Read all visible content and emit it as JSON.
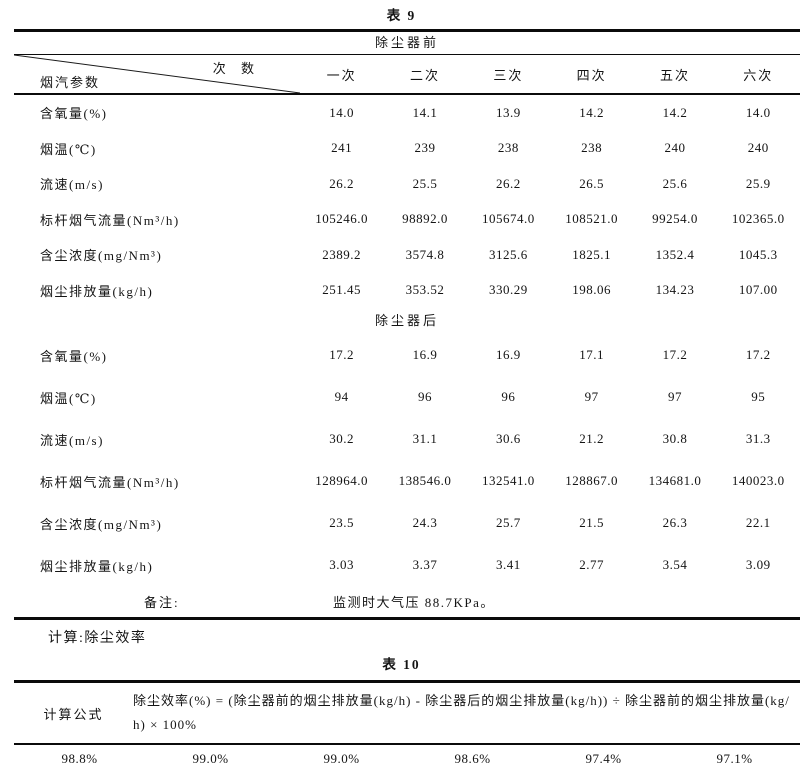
{
  "table9": {
    "title": "表 9",
    "section_before": "除尘器前",
    "section_after": "除尘器后",
    "corner_top": "次 数",
    "corner_bottom": "烟汽参数",
    "columns": [
      "一次",
      "二次",
      "三次",
      "四次",
      "五次",
      "六次"
    ],
    "before_rows": [
      {
        "label": "含氧量(%)",
        "values": [
          "14.0",
          "14.1",
          "13.9",
          "14.2",
          "14.2",
          "14.0"
        ]
      },
      {
        "label": "烟温(℃)",
        "values": [
          "241",
          "239",
          "238",
          "238",
          "240",
          "240"
        ]
      },
      {
        "label": "流速(m/s)",
        "values": [
          "26.2",
          "25.5",
          "26.2",
          "26.5",
          "25.6",
          "25.9"
        ]
      },
      {
        "label": "标杆烟气流量(Nm³/h)",
        "values": [
          "105246.0",
          "98892.0",
          "105674.0",
          "108521.0",
          "99254.0",
          "102365.0"
        ]
      },
      {
        "label": "含尘浓度(mg/Nm³)",
        "values": [
          "2389.2",
          "3574.8",
          "3125.6",
          "1825.1",
          "1352.4",
          "1045.3"
        ]
      },
      {
        "label": "烟尘排放量(kg/h)",
        "values": [
          "251.45",
          "353.52",
          "330.29",
          "198.06",
          "134.23",
          "107.00"
        ]
      }
    ],
    "after_rows": [
      {
        "label": "含氧量(%)",
        "values": [
          "17.2",
          "16.9",
          "16.9",
          "17.1",
          "17.2",
          "17.2"
        ]
      },
      {
        "label": "烟温(℃)",
        "values": [
          "94",
          "96",
          "96",
          "97",
          "97",
          "95"
        ]
      },
      {
        "label": "流速(m/s)",
        "values": [
          "30.2",
          "31.1",
          "30.6",
          "21.2",
          "30.8",
          "31.3"
        ]
      },
      {
        "label": "标杆烟气流量(Nm³/h)",
        "values": [
          "128964.0",
          "138546.0",
          "132541.0",
          "128867.0",
          "134681.0",
          "140023.0"
        ]
      },
      {
        "label": "含尘浓度(mg/Nm³)",
        "values": [
          "23.5",
          "24.3",
          "25.7",
          "21.5",
          "26.3",
          "22.1"
        ]
      },
      {
        "label": "烟尘排放量(kg/h)",
        "values": [
          "3.03",
          "3.37",
          "3.41",
          "2.77",
          "3.54",
          "3.09"
        ]
      }
    ],
    "note_label": "备注:",
    "note_text": "监测时大气压 88.7KPa。"
  },
  "calc_heading": "计算:除尘效率",
  "table10": {
    "title": "表 10",
    "formula_label": "计算公式",
    "formula": "除尘效率(%) = (除尘器前的烟尘排放量(kg/h) - 除尘器后的烟尘排放量(kg/h)) ÷ 除尘器前的烟尘排放量(kg/h) × 100%",
    "results": [
      "98.8%",
      "99.0%",
      "99.0%",
      "98.6%",
      "97.4%",
      "97.1%"
    ]
  }
}
